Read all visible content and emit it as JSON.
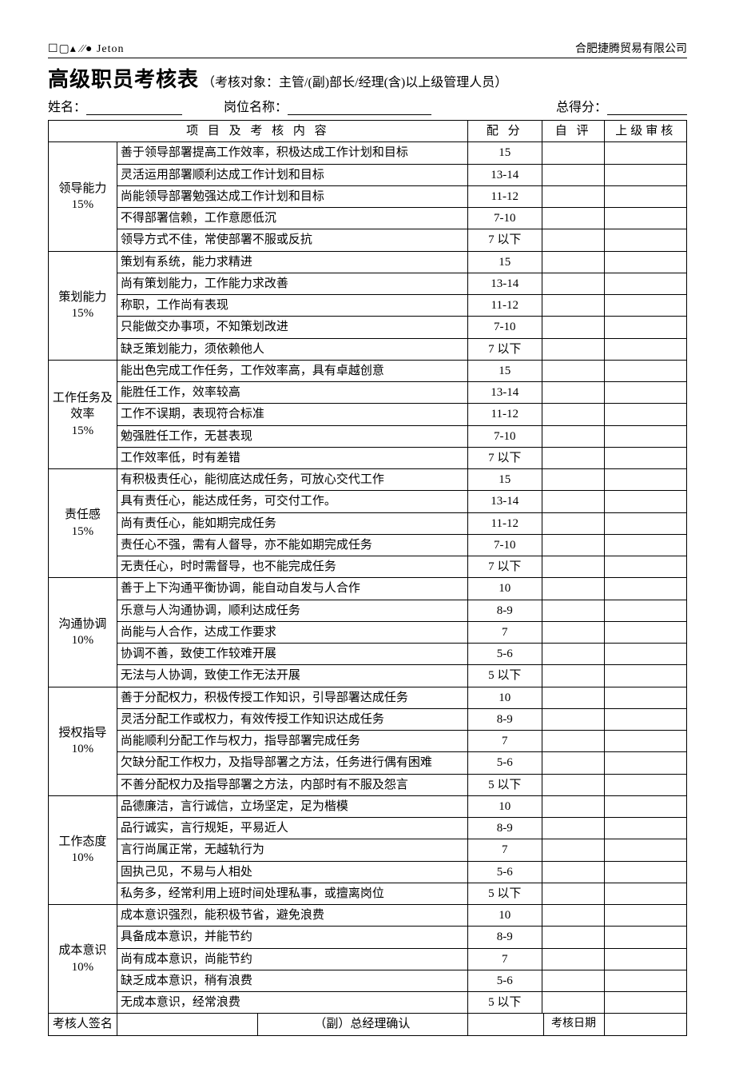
{
  "header": {
    "logo_text": "☐▢▴ ⁄⁄● Jeton",
    "company": "合肥捷腾贸易有限公司"
  },
  "title": {
    "main": "高级职员考核表",
    "sub": "（考核对象：主管/(副)部长/经理(含)以上级管理人员）"
  },
  "info": {
    "name_label": "姓名：",
    "position_label": "岗位名称：",
    "total_label": "总得分："
  },
  "columns": {
    "content": "项 目 及 考 核 内 容",
    "score": "配 分",
    "self": "自 评",
    "supervisor": "上级审核"
  },
  "groups": [
    {
      "name": "领导能力",
      "weight": "15%",
      "rows": [
        {
          "desc": "善于领导部署提高工作效率，积极达成工作计划和目标",
          "score": "15"
        },
        {
          "desc": "灵活运用部署顺利达成工作计划和目标",
          "score": "13-14"
        },
        {
          "desc": "尚能领导部署勉强达成工作计划和目标",
          "score": "11-12"
        },
        {
          "desc": "不得部署信赖，工作意愿低沉",
          "score": "7-10"
        },
        {
          "desc": "领导方式不佳，常使部署不服或反抗",
          "score": "7 以下"
        }
      ]
    },
    {
      "name": "策划能力",
      "weight": "15%",
      "rows": [
        {
          "desc": "策划有系统，能力求精进",
          "score": "15"
        },
        {
          "desc": "尚有策划能力，工作能力求改善",
          "score": "13-14"
        },
        {
          "desc": "称职，工作尚有表现",
          "score": "11-12"
        },
        {
          "desc": "只能做交办事项，不知策划改进",
          "score": "7-10"
        },
        {
          "desc": "缺乏策划能力，须依赖他人",
          "score": "7 以下"
        }
      ]
    },
    {
      "name": "工作任务及效率",
      "weight": "15%",
      "rows": [
        {
          "desc": "能出色完成工作任务，工作效率高，具有卓越创意",
          "score": "15"
        },
        {
          "desc": "能胜任工作，效率较高",
          "score": "13-14"
        },
        {
          "desc": "工作不误期，表现符合标准",
          "score": "11-12"
        },
        {
          "desc": "勉强胜任工作，无甚表现",
          "score": "7-10"
        },
        {
          "desc": "工作效率低，时有差错",
          "score": "7 以下"
        }
      ]
    },
    {
      "name": "责任感",
      "weight": "15%",
      "rows": [
        {
          "desc": "有积极责任心，能彻底达成任务，可放心交代工作",
          "score": "15"
        },
        {
          "desc": "具有责任心，能达成任务，可交付工作。",
          "score": "13-14"
        },
        {
          "desc": "尚有责任心，能如期完成任务",
          "score": "11-12"
        },
        {
          "desc": "责任心不强，需有人督导，亦不能如期完成任务",
          "score": "7-10"
        },
        {
          "desc": "无责任心，时时需督导，也不能完成任务",
          "score": "7 以下"
        }
      ]
    },
    {
      "name": "沟通协调",
      "weight": "10%",
      "rows": [
        {
          "desc": "善于上下沟通平衡协调，能自动自发与人合作",
          "score": "10"
        },
        {
          "desc": "乐意与人沟通协调，顺利达成任务",
          "score": "8-9"
        },
        {
          "desc": "尚能与人合作，达成工作要求",
          "score": "7"
        },
        {
          "desc": "协调不善，致使工作较难开展",
          "score": "5-6"
        },
        {
          "desc": "无法与人协调，致使工作无法开展",
          "score": "5 以下"
        }
      ]
    },
    {
      "name": "授权指导",
      "weight": "10%",
      "rows": [
        {
          "desc": "善于分配权力，积极传授工作知识，引导部署达成任务",
          "score": "10"
        },
        {
          "desc": "灵活分配工作或权力，有效传授工作知识达成任务",
          "score": "8-9"
        },
        {
          "desc": "尚能顺利分配工作与权力，指导部署完成任务",
          "score": "7"
        },
        {
          "desc": "欠缺分配工作权力，及指导部署之方法，任务进行偶有困难",
          "score": "5-6"
        },
        {
          "desc": "不善分配权力及指导部署之方法，内部时有不服及怨言",
          "score": "5 以下"
        }
      ]
    },
    {
      "name": "工作态度",
      "weight": "10%",
      "rows": [
        {
          "desc": "品德廉洁，言行诚信，立场坚定，足为楷模",
          "score": "10"
        },
        {
          "desc": "品行诚实，言行规矩，平易近人",
          "score": "8-9"
        },
        {
          "desc": "言行尚属正常，无越轨行为",
          "score": "7"
        },
        {
          "desc": "固执己见，不易与人相处",
          "score": "5-6"
        },
        {
          "desc": "私务多，经常利用上班时间处理私事，或擅离岗位",
          "score": "5 以下"
        }
      ]
    },
    {
      "name": "成本意识",
      "weight": "10%",
      "rows": [
        {
          "desc": "成本意识强烈，能积极节省，避免浪费",
          "score": "10"
        },
        {
          "desc": "具备成本意识，并能节约",
          "score": "8-9"
        },
        {
          "desc": "尚有成本意识，尚能节约",
          "score": "7"
        },
        {
          "desc": "缺乏成本意识，稍有浪费",
          "score": "5-6"
        },
        {
          "desc": "无成本意识，经常浪费",
          "score": "5 以下"
        }
      ]
    }
  ],
  "footer": {
    "assessor_sign": "考核人签名",
    "gm_confirm": "（副）总经理确认",
    "date": "考核日期"
  }
}
